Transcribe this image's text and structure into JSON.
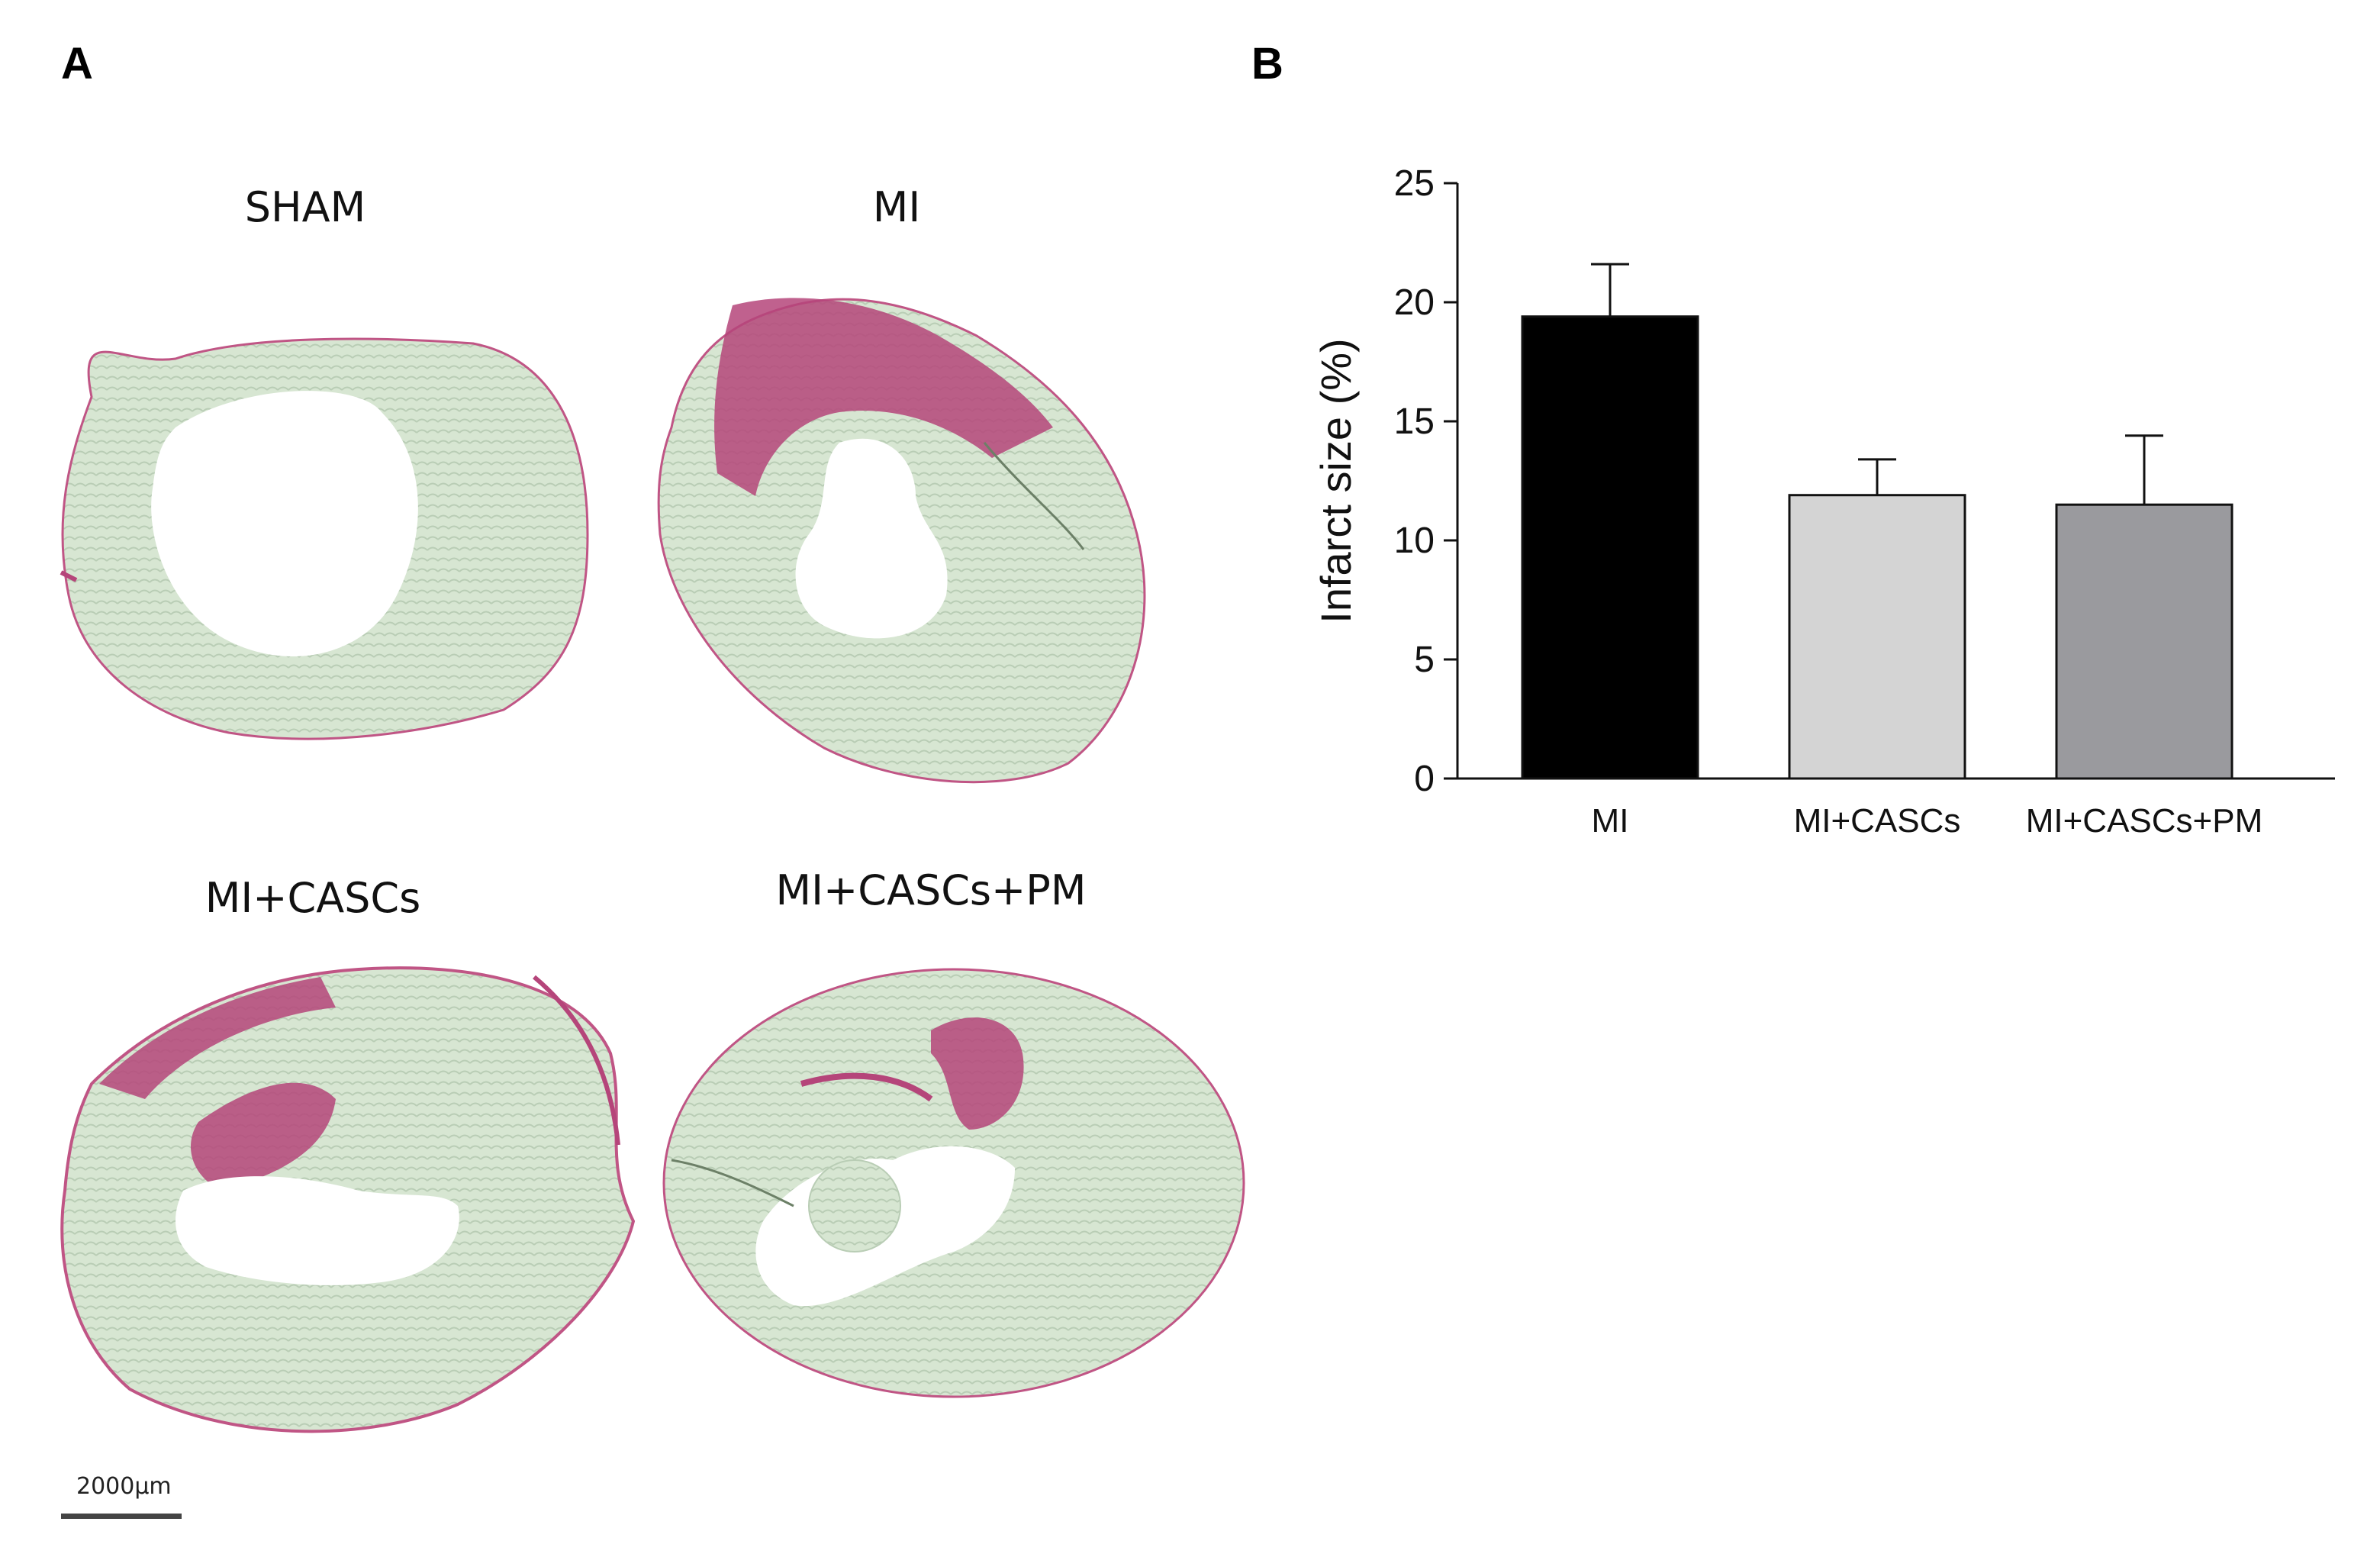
{
  "panels": {
    "a_letter": "A",
    "b_letter": "B"
  },
  "images": [
    {
      "label": "SHAM"
    },
    {
      "label": "MI"
    },
    {
      "label": "MI+CASCs"
    },
    {
      "label": "MI+CASCs+PM"
    }
  ],
  "scalebar": {
    "label": "2000µm"
  },
  "colors": {
    "tissue": "#c9dcc6",
    "tissue_light": "#d9e8d4",
    "fibrosis": "#b5457a",
    "bar_MI": "#000000",
    "bar_MI_CASCs": "#d4d4d4",
    "bar_MI_CASCs_PM": "#9a9a9e"
  },
  "chart_data": {
    "type": "bar",
    "categories": [
      "MI",
      "MI+CASCs",
      "MI+CASCs+PM"
    ],
    "values": [
      19.4,
      11.9,
      11.5
    ],
    "errors": [
      2.2,
      1.5,
      2.9
    ],
    "ylabel": "Infarct size (%)",
    "xlabel": "",
    "ylim": [
      0,
      25
    ],
    "yticks": [
      0,
      5,
      10,
      15,
      20,
      25
    ],
    "grid": false
  }
}
